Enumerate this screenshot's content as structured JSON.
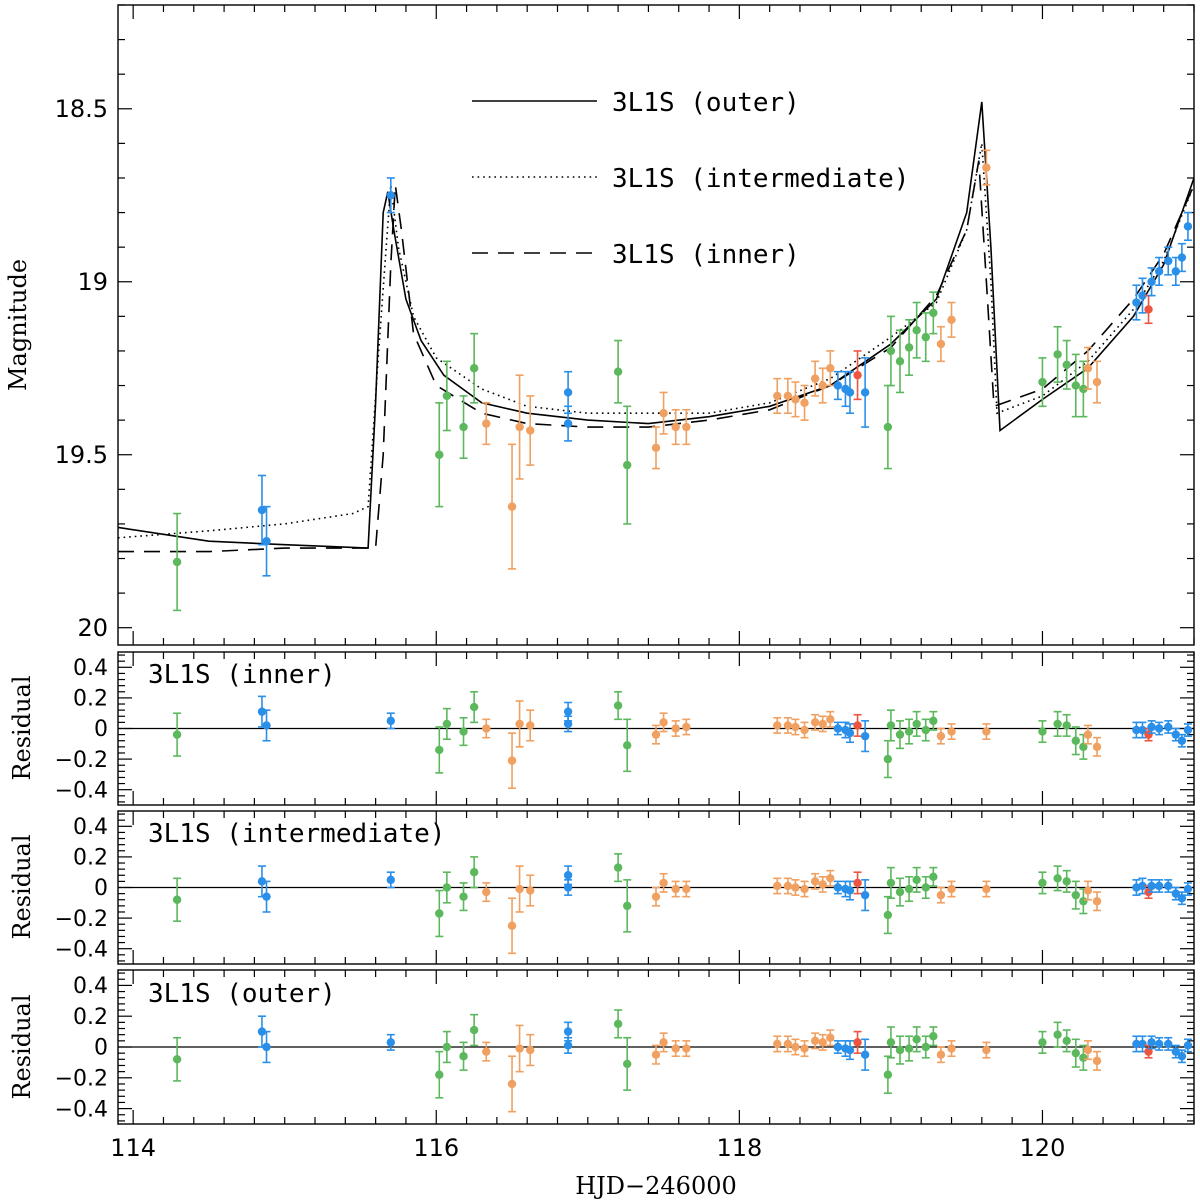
{
  "colors": {
    "green": "#5cb85c",
    "orange": "#f0a060",
    "blue": "#2a8fe8",
    "red": "#ee5540"
  },
  "chart_data": {
    "type": "scatter",
    "xlabel": "HJD−246000",
    "xlim": [
      113.9,
      121.0
    ],
    "xticks": [
      114,
      116,
      118,
      120
    ],
    "xtick_labels": [
      "114",
      "116",
      "118",
      "120"
    ],
    "main": {
      "ylabel": "Magnitude",
      "ylim": [
        20.05,
        18.2
      ],
      "yticks": [
        18.5,
        19,
        19.5,
        20
      ],
      "ytick_labels": [
        "18.5",
        "19",
        "19.5",
        "20"
      ],
      "legend": [
        {
          "label": "3L1S (outer)",
          "style": "solid"
        },
        {
          "label": "3L1S (intermediate)",
          "style": "dotted"
        },
        {
          "label": "3L1S (inner)",
          "style": "dashed"
        }
      ],
      "models": [
        {
          "name": "outer",
          "style": "solid",
          "points": [
            [
              113.9,
              19.71
            ],
            [
              114.5,
              19.75
            ],
            [
              115,
              19.76
            ],
            [
              115.55,
              19.77
            ],
            [
              115.6,
              19.35
            ],
            [
              115.65,
              18.8
            ],
            [
              115.68,
              18.74
            ],
            [
              115.72,
              18.85
            ],
            [
              115.8,
              19.05
            ],
            [
              115.9,
              19.17
            ],
            [
              116.05,
              19.27
            ],
            [
              116.3,
              19.35
            ],
            [
              116.6,
              19.38
            ],
            [
              117,
              19.4
            ],
            [
              117.4,
              19.41
            ],
            [
              117.8,
              19.39
            ],
            [
              118.2,
              19.36
            ],
            [
              118.6,
              19.3
            ],
            [
              119,
              19.18
            ],
            [
              119.3,
              19.05
            ],
            [
              119.5,
              18.8
            ],
            [
              119.6,
              18.48
            ],
            [
              119.66,
              18.9
            ],
            [
              119.72,
              19.43
            ],
            [
              120,
              19.34
            ],
            [
              120.3,
              19.25
            ],
            [
              120.6,
              19.1
            ],
            [
              120.8,
              18.95
            ],
            [
              121,
              18.7
            ]
          ]
        },
        {
          "name": "intermediate",
          "style": "dotted",
          "points": [
            [
              113.9,
              19.74
            ],
            [
              114.5,
              19.72
            ],
            [
              115,
              19.7
            ],
            [
              115.45,
              19.67
            ],
            [
              115.55,
              19.65
            ],
            [
              115.62,
              19.2
            ],
            [
              115.67,
              18.9
            ],
            [
              115.7,
              18.72
            ],
            [
              115.75,
              18.9
            ],
            [
              115.85,
              19.1
            ],
            [
              116,
              19.22
            ],
            [
              116.3,
              19.31
            ],
            [
              116.6,
              19.36
            ],
            [
              117,
              19.38
            ],
            [
              117.4,
              19.38
            ],
            [
              117.8,
              19.38
            ],
            [
              118.2,
              19.35
            ],
            [
              118.6,
              19.28
            ],
            [
              119,
              19.16
            ],
            [
              119.3,
              19.06
            ],
            [
              119.5,
              18.85
            ],
            [
              119.6,
              18.6
            ],
            [
              119.66,
              19.0
            ],
            [
              119.7,
              19.38
            ],
            [
              120,
              19.33
            ],
            [
              120.3,
              19.23
            ],
            [
              120.6,
              19.08
            ],
            [
              120.8,
              18.94
            ],
            [
              121,
              18.72
            ]
          ]
        },
        {
          "name": "inner",
          "style": "dashed",
          "points": [
            [
              113.9,
              19.78
            ],
            [
              114.5,
              19.78
            ],
            [
              115,
              19.77
            ],
            [
              115.6,
              19.77
            ],
            [
              115.65,
              19.5
            ],
            [
              115.7,
              18.95
            ],
            [
              115.73,
              18.72
            ],
            [
              115.77,
              18.85
            ],
            [
              115.85,
              19.15
            ],
            [
              116,
              19.3
            ],
            [
              116.3,
              19.38
            ],
            [
              116.6,
              19.41
            ],
            [
              117,
              19.42
            ],
            [
              117.4,
              19.42
            ],
            [
              117.8,
              19.4
            ],
            [
              118.2,
              19.37
            ],
            [
              118.6,
              19.3
            ],
            [
              119,
              19.19
            ],
            [
              119.3,
              19.04
            ],
            [
              119.5,
              18.85
            ],
            [
              119.58,
              18.65
            ],
            [
              119.63,
              19.0
            ],
            [
              119.68,
              19.36
            ],
            [
              120,
              19.31
            ],
            [
              120.3,
              19.2
            ],
            [
              120.6,
              19.05
            ],
            [
              120.8,
              18.92
            ],
            [
              121,
              18.72
            ]
          ]
        }
      ]
    },
    "residual_panels": [
      {
        "title": "3L1S (inner)",
        "ylabel": "Residual",
        "ylim": [
          -0.5,
          0.5
        ],
        "yticks": [
          -0.4,
          -0.2,
          0,
          0.2,
          0.4
        ],
        "ytick_labels": [
          "−0.4",
          "−0.2",
          "0",
          "0.2",
          "0.4"
        ]
      },
      {
        "title": "3L1S (intermediate)",
        "ylabel": "Residual",
        "ylim": [
          -0.5,
          0.5
        ],
        "yticks": [
          -0.4,
          -0.2,
          0,
          0.2,
          0.4
        ],
        "ytick_labels": [
          "−0.4",
          "−0.2",
          "0",
          "0.2",
          "0.4"
        ]
      },
      {
        "title": "3L1S (outer)",
        "ylabel": "Residual",
        "ylim": [
          -0.5,
          0.5
        ],
        "yticks": [
          -0.4,
          -0.2,
          0,
          0.2,
          0.4
        ],
        "ytick_labels": [
          "−0.4",
          "−0.2",
          "0",
          "0.2",
          "0.4"
        ]
      }
    ],
    "observations": {
      "fields": [
        "x",
        "magnitude",
        "error",
        "color",
        "residual_inner",
        "residual_intermediate",
        "residual_outer"
      ],
      "points": [
        [
          114.29,
          19.81,
          0.14,
          "green",
          -0.04,
          -0.08,
          -0.08
        ],
        [
          114.85,
          19.66,
          0.1,
          "blue",
          0.11,
          0.04,
          0.1
        ],
        [
          114.88,
          19.75,
          0.1,
          "blue",
          0.02,
          -0.06,
          0.0
        ],
        [
          115.7,
          18.75,
          0.05,
          "blue",
          0.05,
          0.05,
          0.03
        ],
        [
          116.02,
          19.5,
          0.15,
          "green",
          -0.14,
          -0.17,
          -0.18
        ],
        [
          116.07,
          19.33,
          0.1,
          "green",
          0.03,
          0.0,
          0.0
        ],
        [
          116.18,
          19.42,
          0.09,
          "green",
          -0.02,
          -0.06,
          -0.06
        ],
        [
          116.25,
          19.25,
          0.1,
          "green",
          0.14,
          0.1,
          0.11
        ],
        [
          116.33,
          19.41,
          0.06,
          "orange",
          0.0,
          -0.03,
          -0.03
        ],
        [
          116.5,
          19.65,
          0.18,
          "orange",
          -0.21,
          -0.25,
          -0.24
        ],
        [
          116.55,
          19.42,
          0.15,
          "orange",
          0.03,
          -0.01,
          -0.01
        ],
        [
          116.62,
          19.43,
          0.1,
          "orange",
          0.02,
          -0.02,
          -0.02
        ],
        [
          116.87,
          19.32,
          0.06,
          "blue",
          0.11,
          0.08,
          0.1
        ],
        [
          116.87,
          19.41,
          0.05,
          "blue",
          0.03,
          0.0,
          0.01
        ],
        [
          117.2,
          19.26,
          0.09,
          "green",
          0.15,
          0.13,
          0.15
        ],
        [
          117.26,
          19.53,
          0.17,
          "green",
          -0.11,
          -0.12,
          -0.11
        ],
        [
          117.45,
          19.48,
          0.06,
          "orange",
          -0.04,
          -0.06,
          -0.05
        ],
        [
          117.5,
          19.38,
          0.06,
          "orange",
          0.04,
          0.03,
          0.03
        ],
        [
          117.58,
          19.42,
          0.05,
          "orange",
          0.0,
          -0.01,
          -0.01
        ],
        [
          117.65,
          19.42,
          0.05,
          "orange",
          0.01,
          -0.01,
          -0.01
        ],
        [
          118.25,
          19.33,
          0.05,
          "orange",
          0.02,
          0.01,
          0.02
        ],
        [
          118.32,
          19.33,
          0.05,
          "orange",
          0.02,
          0.01,
          0.02
        ],
        [
          118.37,
          19.34,
          0.05,
          "orange",
          0.01,
          0.0,
          0.0
        ],
        [
          118.43,
          19.35,
          0.05,
          "orange",
          -0.01,
          -0.01,
          -0.01
        ],
        [
          118.5,
          19.28,
          0.05,
          "orange",
          0.04,
          0.04,
          0.04
        ],
        [
          118.55,
          19.3,
          0.05,
          "orange",
          0.03,
          0.02,
          0.03
        ],
        [
          118.6,
          19.25,
          0.05,
          "orange",
          0.06,
          0.06,
          0.06
        ],
        [
          118.65,
          19.3,
          0.04,
          "blue",
          0.0,
          0.0,
          0.0
        ],
        [
          118.7,
          19.31,
          0.05,
          "blue",
          -0.01,
          -0.01,
          -0.01
        ],
        [
          118.73,
          19.32,
          0.06,
          "blue",
          -0.03,
          -0.02,
          -0.02
        ],
        [
          118.78,
          19.27,
          0.07,
          "red",
          0.02,
          0.03,
          0.03
        ],
        [
          118.83,
          19.32,
          0.1,
          "blue",
          -0.05,
          -0.05,
          -0.05
        ],
        [
          118.98,
          19.42,
          0.12,
          "green",
          -0.2,
          -0.18,
          -0.18
        ],
        [
          119.0,
          19.2,
          0.1,
          "green",
          0.02,
          0.03,
          0.03
        ],
        [
          119.06,
          19.23,
          0.09,
          "green",
          -0.04,
          -0.03,
          -0.02
        ],
        [
          119.12,
          19.19,
          0.08,
          "green",
          -0.02,
          -0.01,
          -0.01
        ],
        [
          119.17,
          19.14,
          0.08,
          "green",
          0.03,
          0.05,
          0.05
        ],
        [
          119.23,
          19.16,
          0.07,
          "green",
          -0.01,
          0.0,
          0.0
        ],
        [
          119.28,
          19.09,
          0.06,
          "green",
          0.05,
          0.07,
          0.07
        ],
        [
          119.33,
          19.18,
          0.05,
          "orange",
          -0.05,
          -0.05,
          -0.05
        ],
        [
          119.4,
          19.11,
          0.05,
          "orange",
          -0.02,
          -0.01,
          -0.01
        ],
        [
          119.63,
          18.67,
          0.05,
          "orange",
          -0.02,
          -0.01,
          -0.02
        ],
        [
          120.0,
          19.29,
          0.07,
          "green",
          -0.02,
          0.03,
          0.03
        ],
        [
          120.1,
          19.21,
          0.08,
          "green",
          0.03,
          0.06,
          0.08
        ],
        [
          120.16,
          19.24,
          0.07,
          "green",
          0.02,
          0.04,
          0.04
        ],
        [
          120.22,
          19.3,
          0.09,
          "green",
          -0.08,
          -0.05,
          -0.04
        ],
        [
          120.27,
          19.31,
          0.08,
          "green",
          -0.12,
          -0.09,
          -0.07
        ],
        [
          120.3,
          19.25,
          0.06,
          "orange",
          -0.04,
          -0.02,
          -0.02
        ],
        [
          120.36,
          19.29,
          0.06,
          "orange",
          -0.12,
          -0.09,
          -0.09
        ],
        [
          120.62,
          19.06,
          0.05,
          "blue",
          -0.01,
          0.0,
          0.02
        ],
        [
          120.66,
          19.04,
          0.05,
          "blue",
          -0.01,
          0.01,
          0.02
        ],
        [
          120.7,
          19.08,
          0.04,
          "red",
          -0.04,
          -0.03,
          -0.03
        ],
        [
          120.72,
          19.0,
          0.04,
          "blue",
          0.01,
          0.01,
          0.03
        ],
        [
          120.77,
          18.97,
          0.04,
          "blue",
          0.0,
          0.01,
          0.02
        ],
        [
          120.83,
          18.94,
          0.04,
          "blue",
          0.01,
          0.01,
          0.02
        ],
        [
          120.88,
          18.97,
          0.04,
          "blue",
          -0.04,
          -0.04,
          -0.03
        ],
        [
          120.92,
          18.93,
          0.04,
          "blue",
          -0.08,
          -0.07,
          -0.06
        ],
        [
          120.96,
          18.84,
          0.04,
          "blue",
          -0.01,
          -0.01,
          0.01
        ],
        [
          121.03,
          18.78,
          0.04,
          "blue",
          0.02,
          0.0,
          0.02
        ],
        [
          121.08,
          18.64,
          0.06,
          "green",
          0.09,
          0.08,
          0.08
        ]
      ]
    }
  }
}
